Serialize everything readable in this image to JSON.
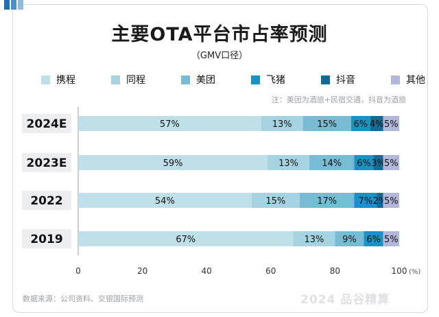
{
  "header": {
    "title": "主要OTA平台市占率预测",
    "subtitle": "（GMV口径）"
  },
  "note": "注：美团为酒旅+民宿交通，抖音为酒旅",
  "source": "数据来源：公司资料、交银国际预测",
  "watermark": "2024 品谷精算",
  "colors": {
    "携程": "#bfdfe9",
    "同程": "#a6d3e1",
    "美团": "#78bcd3",
    "飞猪": "#1a93c4",
    "抖音": "#126c95",
    "其他": "#b3b7da"
  },
  "chart_data": {
    "type": "bar",
    "orientation": "horizontal",
    "stacked": true,
    "title": "主要OTA平台市占率预测",
    "subtitle": "（GMV口径）",
    "categories": [
      "2024E",
      "2023E",
      "2022",
      "2019"
    ],
    "series": [
      {
        "name": "携程",
        "values": [
          57,
          59,
          54,
          67
        ]
      },
      {
        "name": "同程",
        "values": [
          13,
          13,
          15,
          13
        ]
      },
      {
        "name": "美团",
        "values": [
          15,
          14,
          17,
          9
        ]
      },
      {
        "name": "飞猪",
        "values": [
          6,
          6,
          7,
          6
        ]
      },
      {
        "name": "抖音",
        "values": [
          4,
          3,
          2,
          0
        ]
      },
      {
        "name": "其他",
        "values": [
          5,
          5,
          5,
          5
        ]
      }
    ],
    "labels": [
      [
        "57%",
        "13%",
        "15%",
        "6%",
        "4%",
        "5%"
      ],
      [
        "59%",
        "13%",
        "14%",
        "6%",
        "3%",
        "5%"
      ],
      [
        "54%",
        "15%",
        "17%",
        "7%",
        "2%",
        "5%"
      ],
      [
        "67%",
        "13%",
        "9%",
        "6%",
        "",
        "5%"
      ]
    ],
    "xlim": [
      0,
      100
    ],
    "xticks": [
      0,
      20,
      40,
      60,
      80,
      100
    ],
    "xtick_labels": [
      "0",
      "20",
      "40",
      "60",
      "80",
      "100"
    ],
    "xunit": "(%)",
    "xlabel": "",
    "ylabel": "",
    "legend_position": "top"
  }
}
